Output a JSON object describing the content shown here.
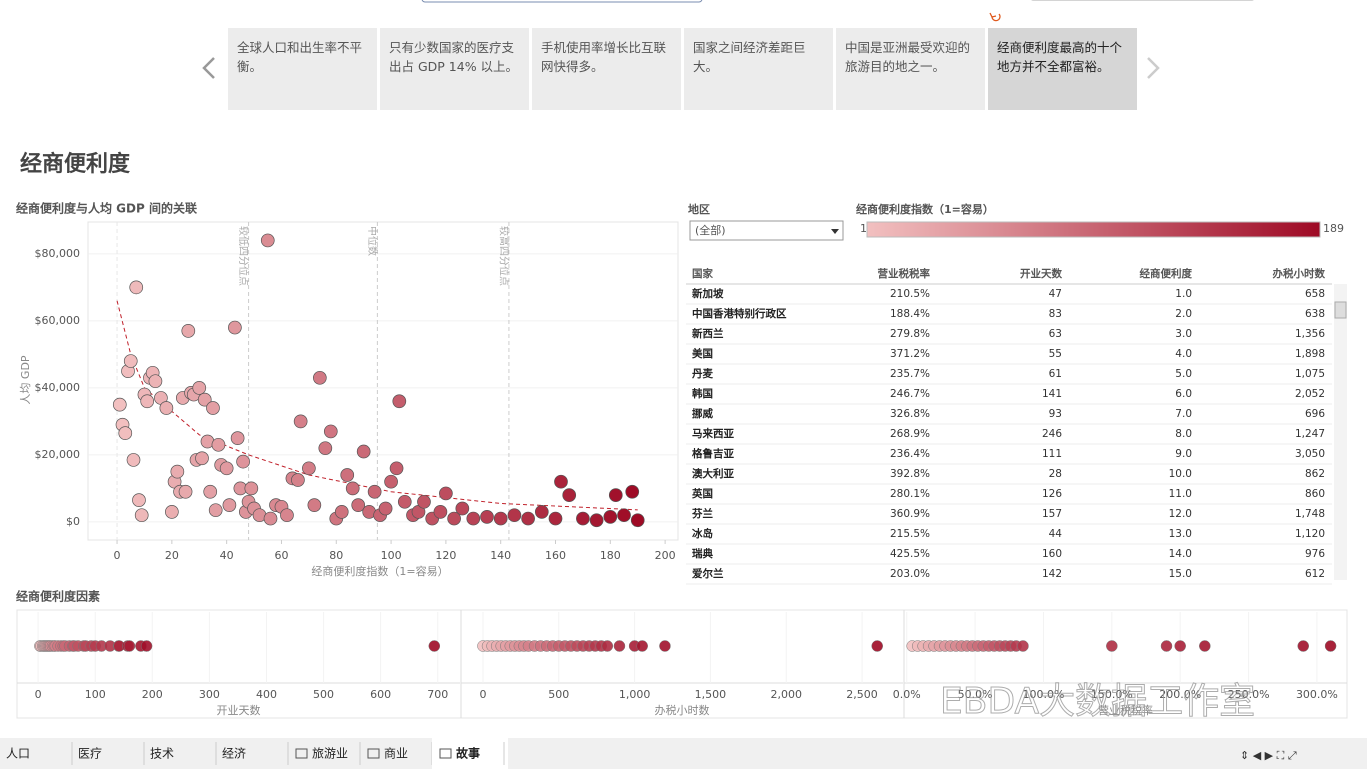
{
  "story": {
    "points": [
      "全球人口和出生率不平衡。",
      "只有少数国家的医疗支出占 GDP 14% 以上。",
      "手机使用率增长比互联网快得多。",
      "国家之间经济差距巨大。",
      "中国是亚洲最受欢迎的旅游目的地之一。",
      "经商便利度最高的十个地方并不全都富裕。"
    ],
    "active": 5
  },
  "title": "经商便利度",
  "scatter": {
    "type": "scatter",
    "title": "经商便利度与人均 GDP 间的关联",
    "x_label": "经商便利度指数（1=容易）",
    "y_label": "人均 GDP",
    "xlim": [
      -10.6,
      204.7
    ],
    "ylim": [
      -5400,
      89500
    ],
    "xticks": [
      0,
      20,
      40,
      60,
      80,
      100,
      120,
      140,
      160,
      180,
      200
    ],
    "yticks": [
      {
        "value": 0,
        "label": "$0"
      },
      {
        "value": 20000,
        "label": "$20,000"
      },
      {
        "value": 40000,
        "label": "$40,000"
      },
      {
        "value": 60000,
        "label": "$60,000"
      },
      {
        "value": 80000,
        "label": "$80,000"
      }
    ],
    "ref_lines": [
      {
        "label": "较低四分位点",
        "x": 48
      },
      {
        "label": "中位数",
        "x": 95
      },
      {
        "label": "较高四分位点",
        "x": 143
      }
    ],
    "trend": {
      "x": [
        0,
        5,
        10,
        20,
        30,
        48,
        70,
        100,
        140,
        190
      ],
      "y": [
        66000,
        50000,
        40000,
        33000,
        26000,
        20000,
        14000,
        9000,
        5500,
        3600
      ],
      "color": "#c0202a"
    },
    "x": [
      1,
      2,
      3,
      4,
      5,
      6,
      7,
      8,
      9,
      10,
      11,
      12,
      13,
      14,
      16,
      18,
      20,
      21,
      22,
      23,
      24,
      25,
      26,
      27,
      28,
      29,
      30,
      31,
      32,
      33,
      34,
      35,
      36,
      37,
      38,
      40,
      41,
      43,
      44,
      45,
      46,
      47,
      48,
      49,
      50,
      52,
      55,
      56,
      58,
      60,
      62,
      64,
      66,
      67,
      70,
      72,
      74,
      76,
      78,
      80,
      82,
      84,
      86,
      88,
      90,
      92,
      94,
      96,
      98,
      100,
      102,
      103,
      105,
      108,
      110,
      112,
      115,
      118,
      120,
      123,
      126,
      130,
      135,
      140,
      145,
      150,
      155,
      160,
      162,
      165,
      170,
      175,
      180,
      182,
      185,
      188,
      190
    ],
    "y": [
      35000,
      29000,
      26500,
      45000,
      48000,
      18500,
      70000,
      6500,
      2000,
      38000,
      36000,
      43000,
      44500,
      42000,
      37000,
      34000,
      3000,
      12000,
      15000,
      9000,
      37000,
      9000,
      57000,
      38500,
      38000,
      18500,
      40000,
      19000,
      36500,
      24000,
      9000,
      34000,
      3500,
      23000,
      17000,
      16000,
      5000,
      58000,
      25000,
      10000,
      18000,
      3000,
      6000,
      10000,
      4000,
      2000,
      84000,
      1000,
      5000,
      4500,
      2000,
      13000,
      12500,
      30000,
      16000,
      5000,
      43000,
      22000,
      27000,
      1000,
      3000,
      14000,
      10000,
      5000,
      21000,
      3000,
      9000,
      2000,
      4000,
      12000,
      16000,
      36000,
      6000,
      2000,
      3000,
      6000,
      1000,
      3000,
      8500,
      1000,
      4000,
      1000,
      1500,
      1000,
      2000,
      1000,
      3000,
      1000,
      12000,
      8000,
      1000,
      500,
      1500,
      8000,
      2000,
      9000,
      500
    ]
  },
  "filters": {
    "region_label": "地区",
    "region_value": "(全部)",
    "legend_title": "经商便利度指数（1=容易）",
    "color_range": [
      1,
      189
    ],
    "colors": [
      "#f2c0c0",
      "#9e0a25"
    ]
  },
  "table": {
    "columns": [
      "国家",
      "营业税税率",
      "开业天数",
      "经商便利度",
      "办税小时数"
    ],
    "rows": [
      [
        "新加坡",
        "210.5%",
        "47",
        "1.0",
        "658"
      ],
      [
        "中国香港特别行政区",
        "188.4%",
        "83",
        "2.0",
        "638"
      ],
      [
        "新西兰",
        "279.8%",
        "63",
        "3.0",
        "1,356"
      ],
      [
        "美国",
        "371.2%",
        "55",
        "4.0",
        "1,898"
      ],
      [
        "丹麦",
        "235.7%",
        "61",
        "5.0",
        "1,075"
      ],
      [
        "韩国",
        "246.7%",
        "141",
        "6.0",
        "2,052"
      ],
      [
        "挪威",
        "326.8%",
        "93",
        "7.0",
        "696"
      ],
      [
        "马来西亚",
        "268.9%",
        "246",
        "8.0",
        "1,247"
      ],
      [
        "格鲁吉亚",
        "236.4%",
        "111",
        "9.0",
        "3,050"
      ],
      [
        "澳大利亚",
        "392.8%",
        "28",
        "10.0",
        "862"
      ],
      [
        "英国",
        "280.1%",
        "126",
        "11.0",
        "860"
      ],
      [
        "芬兰",
        "360.9%",
        "157",
        "12.0",
        "1,748"
      ],
      [
        "冰岛",
        "215.5%",
        "44",
        "13.0",
        "1,120"
      ],
      [
        "瑞典",
        "425.5%",
        "160",
        "14.0",
        "976"
      ],
      [
        "爱尔兰",
        "203.0%",
        "142",
        "15.0",
        "612"
      ]
    ]
  },
  "factors": {
    "title": "经商便利度因素",
    "panels": [
      {
        "label": "开业天数",
        "xlim": [
          -37,
          739
        ],
        "xticks": [
          0,
          100,
          200,
          300,
          400,
          500,
          600,
          700
        ],
        "values": [
          3,
          5,
          8,
          10,
          12,
          14,
          16,
          18,
          20,
          22,
          25,
          28,
          30,
          35,
          40,
          44,
          47,
          55,
          61,
          63,
          70,
          80,
          83,
          93,
          100,
          111,
          126,
          141,
          142,
          157,
          160,
          180,
          190,
          694
        ]
      },
      {
        "label": "办税小时数",
        "xlim": [
          -145,
          2770
        ],
        "xticks": [
          0,
          500,
          {
            "value": 1000,
            "label": "1,000"
          },
          {
            "value": 1500,
            "label": "1,500"
          },
          {
            "value": 2000,
            "label": "2,000"
          },
          {
            "value": 2500,
            "label": "2,500"
          }
        ],
        "values": [
          0,
          30,
          60,
          90,
          120,
          150,
          180,
          210,
          240,
          270,
          300,
          340,
          380,
          420,
          460,
          500,
          540,
          580,
          620,
          660,
          700,
          740,
          780,
          820,
          900,
          1000,
          1050,
          1200,
          2600
        ]
      },
      {
        "label": "营业税税率",
        "xlim": [
          -2,
          322
        ],
        "xticks": [
          {
            "value": 0,
            "label": "0.0%"
          },
          {
            "value": 50,
            "label": "50.0%"
          },
          {
            "value": 100,
            "label": "100.0%"
          },
          {
            "value": 150,
            "label": "150.0%"
          },
          {
            "value": 200,
            "label": "200.0%"
          },
          {
            "value": 250,
            "label": "250.0%"
          },
          {
            "value": 300,
            "label": "300.0%"
          }
        ],
        "values": [
          4,
          8,
          12,
          16,
          20,
          24,
          28,
          32,
          36,
          40,
          44,
          48,
          52,
          56,
          60,
          64,
          68,
          72,
          76,
          80,
          85,
          150,
          190,
          200,
          218,
          290,
          310
        ]
      }
    ]
  },
  "watermark": "EBDA大数据工作室",
  "tabs": [
    "人口",
    "医疗",
    "技术",
    "经济",
    "旅游业",
    "商业",
    "故事"
  ]
}
